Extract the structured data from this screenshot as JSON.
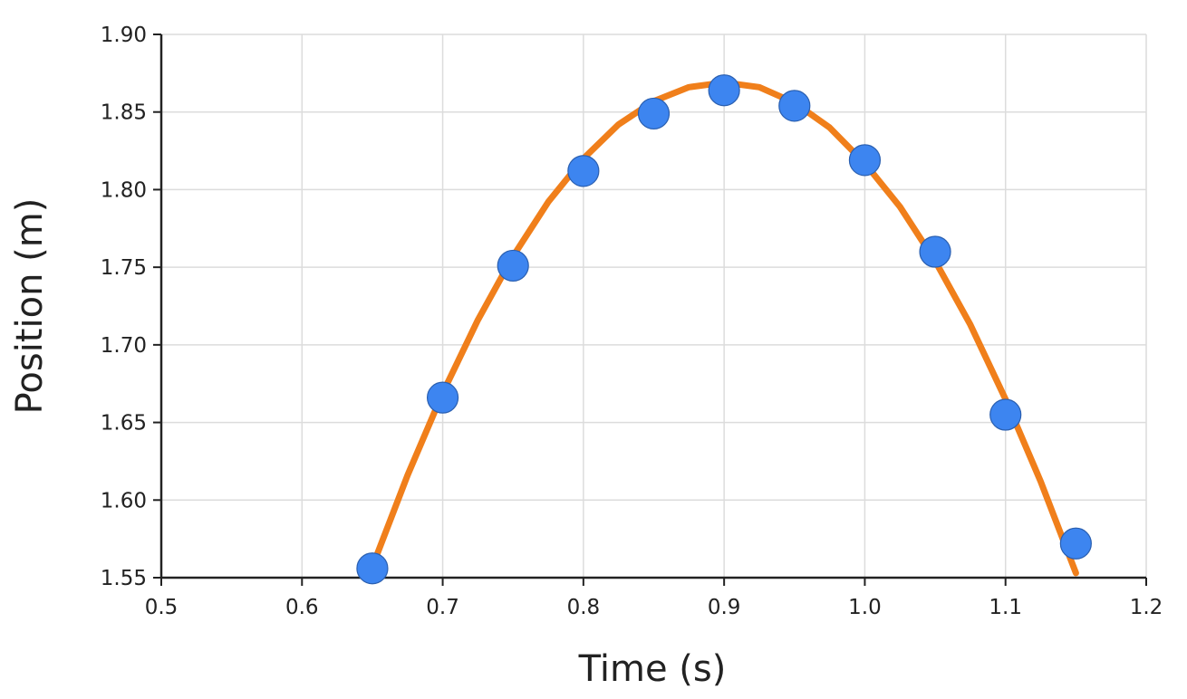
{
  "chart_data": {
    "type": "scatter",
    "title": "",
    "xlabel": "Time (s)",
    "ylabel": "Position (m)",
    "xlim": [
      0.5,
      1.2
    ],
    "ylim": [
      1.55,
      1.9
    ],
    "x_ticks": [
      "0.5",
      "0.6",
      "0.7",
      "0.8",
      "0.9",
      "1.0",
      "1.1",
      "1.2"
    ],
    "y_ticks": [
      "1.55",
      "1.60",
      "1.65",
      "1.70",
      "1.75",
      "1.80",
      "1.85",
      "1.90"
    ],
    "grid": true,
    "legend": "none",
    "series": [
      {
        "type": "scatter",
        "color": "#3d85f0",
        "x": [
          0.65,
          0.7,
          0.75,
          0.8,
          0.85,
          0.9,
          0.95,
          1.0,
          1.05,
          1.1,
          1.15
        ],
        "y": [
          1.556,
          1.666,
          1.751,
          1.812,
          1.849,
          1.864,
          1.854,
          1.819,
          1.76,
          1.655,
          1.572
        ]
      },
      {
        "type": "line",
        "color": "#f07f1b",
        "x": [
          0.65,
          0.675,
          0.7,
          0.725,
          0.75,
          0.775,
          0.8,
          0.825,
          0.85,
          0.875,
          0.9,
          0.925,
          0.95,
          0.975,
          1.0,
          1.025,
          1.05,
          1.075,
          1.1,
          1.125,
          1.15
        ],
        "y": [
          1.557,
          1.616,
          1.669,
          1.716,
          1.757,
          1.792,
          1.82,
          1.842,
          1.857,
          1.866,
          1.869,
          1.866,
          1.856,
          1.84,
          1.817,
          1.789,
          1.754,
          1.713,
          1.665,
          1.612,
          1.553
        ]
      }
    ]
  }
}
